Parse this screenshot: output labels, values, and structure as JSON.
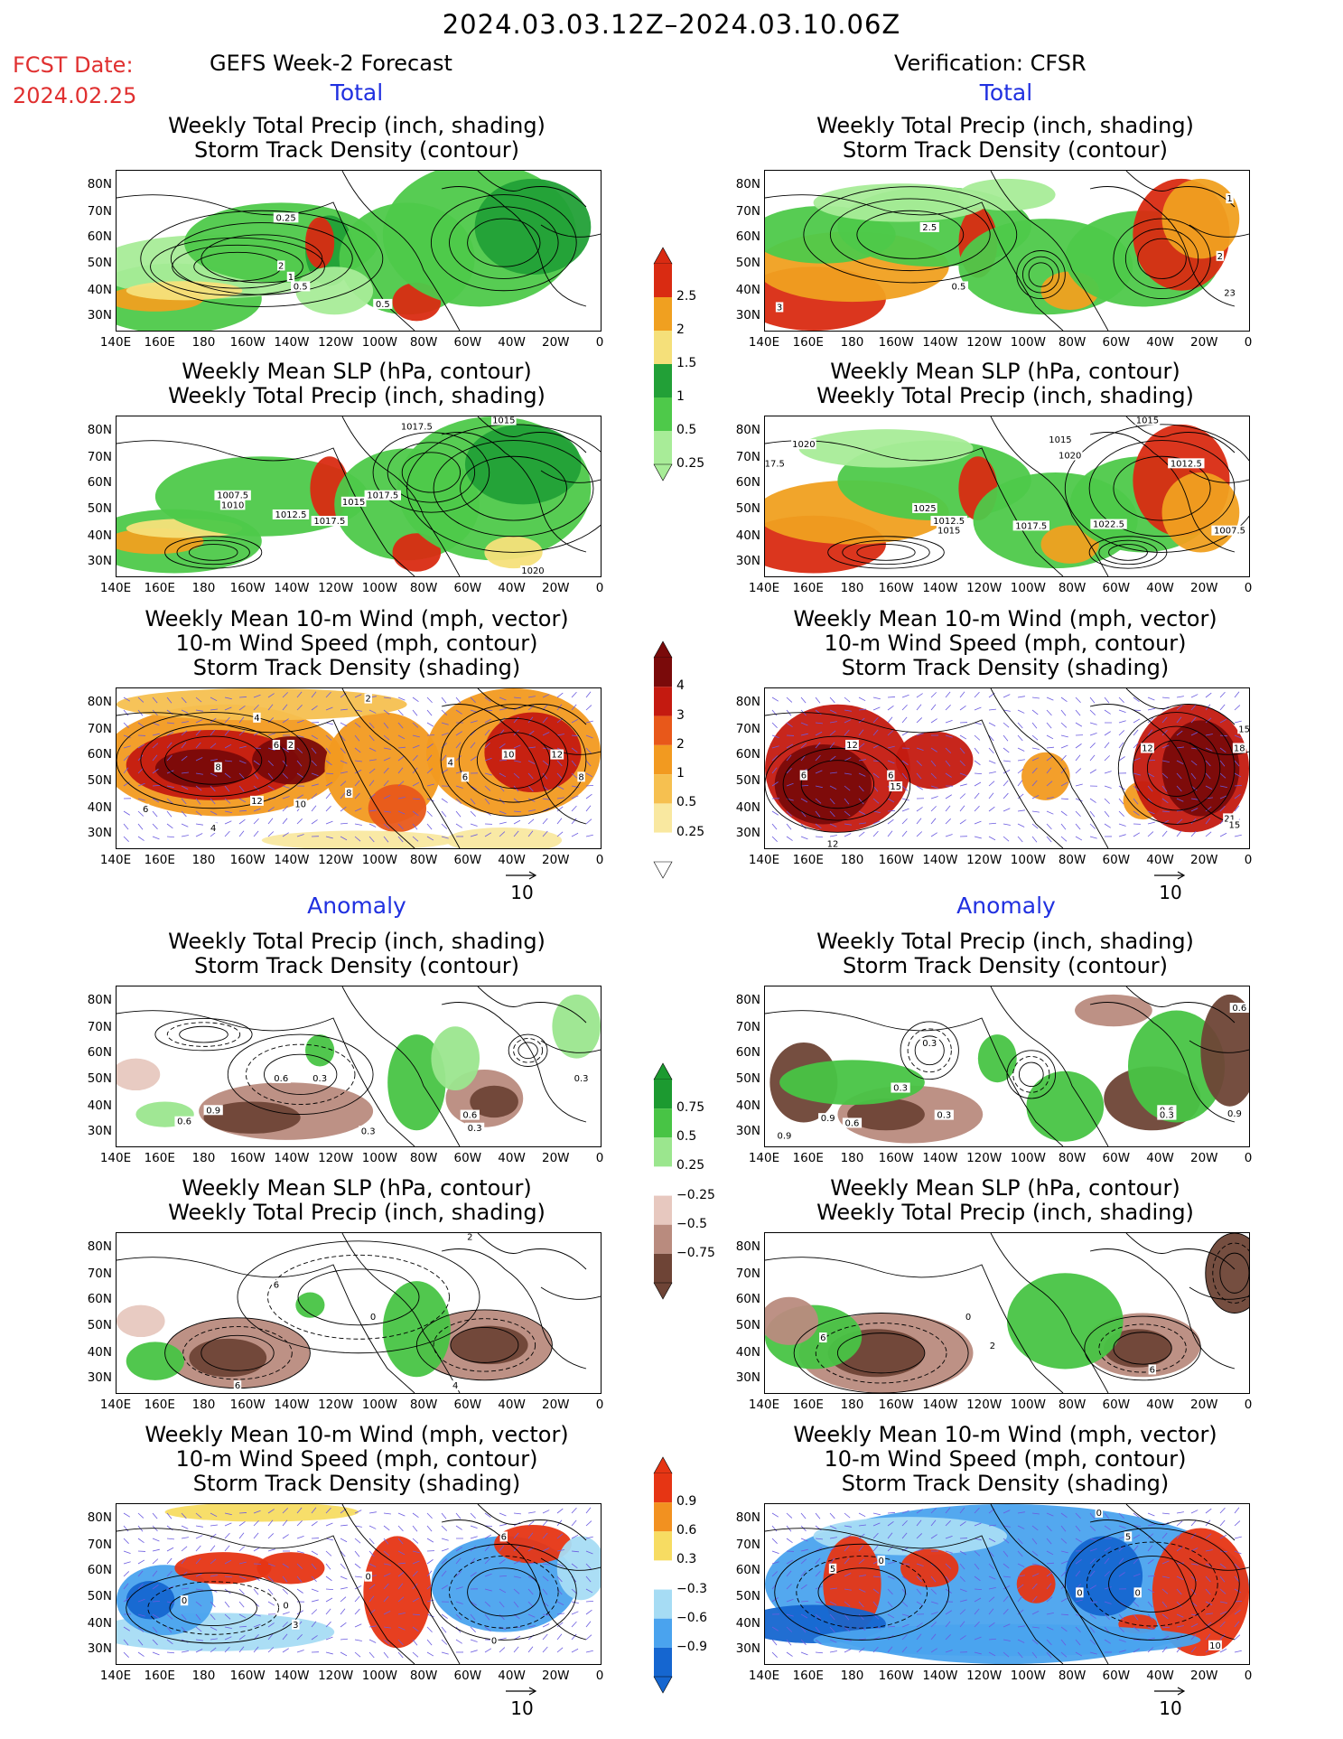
{
  "header": {
    "title": "2024.03.03.12Z–2024.03.10.06Z",
    "fcst_label": "FCST Date:",
    "fcst_date": "2024.02.25",
    "left_heading": "GEFS Week-2 Forecast",
    "right_heading": "Verification: CFSR"
  },
  "sections": {
    "total": "Total",
    "anomaly": "Anomaly"
  },
  "panel_titles": {
    "precip_storm": [
      "Weekly Total Precip (inch, shading)",
      "Storm Track Density (contour)"
    ],
    "slp_precip": [
      "Weekly Mean SLP (hPa, contour)",
      "Weekly Total Precip (inch, shading)"
    ],
    "wind_storm": [
      "Weekly Mean 10-m Wind (mph, vector)",
      "10-m Wind Speed (mph, contour)",
      "Storm Track Density (shading)"
    ]
  },
  "axes": {
    "lat_labels": [
      "80N",
      "70N",
      "60N",
      "50N",
      "40N",
      "30N"
    ],
    "lon_labels": [
      "140E",
      "160E",
      "180",
      "160W",
      "140W",
      "120W",
      "100W",
      "80W",
      "60W",
      "40W",
      "20W",
      "0"
    ]
  },
  "vector_ref": "10",
  "colorbars": {
    "precip_total": {
      "labels": [
        "2.5",
        "2",
        "1.5",
        "1",
        "0.5",
        "0.25"
      ],
      "colors": [
        "#d92b12",
        "#f0a020",
        "#f5e07a",
        "#22a037",
        "#4ec94a",
        "#a8ec98"
      ]
    },
    "storm_total": {
      "labels": [
        "4",
        "3",
        "2",
        "1",
        "0.5",
        "0.25"
      ],
      "colors": [
        "#7a0a0a",
        "#c41a10",
        "#e8581a",
        "#f29a20",
        "#f6c050",
        "#f9e8a0",
        "#ffffff"
      ]
    },
    "precip_anom": {
      "labels": [
        "0.75",
        "0.5",
        "0.25",
        "−0.25",
        "−0.5",
        "−0.75"
      ],
      "colors": [
        "#1c9a30",
        "#48c445",
        "#9be68e",
        "#ffffff",
        "#e7c8bf",
        "#b98b7e",
        "#6e4436"
      ]
    },
    "storm_anom": {
      "labels": [
        "0.9",
        "0.6",
        "0.3",
        "−0.3",
        "−0.6",
        "−0.9"
      ],
      "colors": [
        "#e63514",
        "#f29120",
        "#f7dc62",
        "#ffffff",
        "#a6dcf4",
        "#4aa3ee",
        "#1566d0"
      ]
    }
  },
  "contour_labels": {
    "L1": [
      "0.25",
      "2",
      "1",
      "0.5",
      "0.5"
    ],
    "R1": [
      "1",
      "2",
      "2.5",
      "0.5",
      "23",
      "3"
    ],
    "L2": [
      "1017.5",
      "1015",
      "1007.5",
      "1010",
      "1012.5",
      "1017.5",
      "1015",
      "1017.5",
      "1020"
    ],
    "R2": [
      "1015",
      "1020",
      "17.5",
      "1015",
      "1020",
      "1012.5",
      "1025",
      "1012.5",
      "1015",
      "1017.5",
      "1022.5",
      "1007.5"
    ],
    "L3": [
      "2",
      "4",
      "6",
      "2",
      "8",
      "6",
      "12",
      "10",
      "4",
      "6",
      "10",
      "12",
      "8",
      "4",
      "8"
    ],
    "R3": [
      "12",
      "6",
      "15",
      "6",
      "12",
      "15",
      "18",
      "12",
      "21",
      "15"
    ],
    "L4": [
      "0.6",
      "0.3",
      "0.9",
      "0.6",
      "0.3",
      "0.6",
      "0.3",
      "0.3"
    ],
    "R4": [
      "0.3",
      "0.3",
      "0.6",
      "0.9",
      "0.3",
      "0.6",
      "0.3",
      "0.9",
      "0.6",
      "0.9"
    ],
    "L5": [
      "2",
      "6",
      "0",
      "6",
      "4"
    ],
    "R5": [
      "6",
      "0",
      "2",
      "6"
    ],
    "L6": [
      "0",
      "0",
      "3",
      "6",
      "0",
      "0"
    ],
    "R6": [
      "5",
      "5",
      "0",
      "0",
      "0",
      "10",
      "0"
    ]
  }
}
